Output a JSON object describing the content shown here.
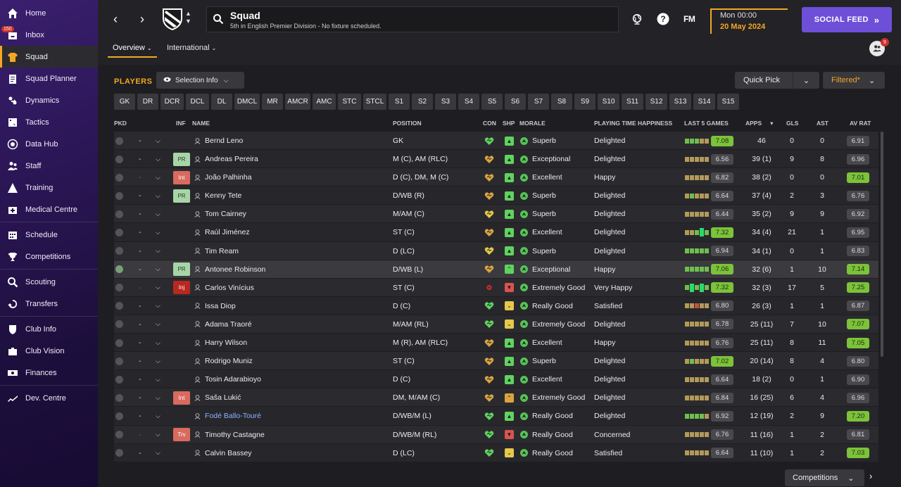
{
  "sidebar": {
    "items": [
      {
        "label": "Home",
        "icon": "home-icon"
      },
      {
        "label": "Inbox",
        "icon": "inbox-icon",
        "badge": "150"
      },
      {
        "label": "Squad",
        "icon": "shirt-icon",
        "active": true
      },
      {
        "label": "Squad Planner",
        "icon": "clipboard-icon"
      },
      {
        "label": "Dynamics",
        "icon": "dynamics-icon"
      },
      {
        "label": "Tactics",
        "icon": "tactics-icon"
      },
      {
        "label": "Data Hub",
        "icon": "data-hub-icon"
      },
      {
        "label": "Staff",
        "icon": "staff-icon"
      },
      {
        "label": "Training",
        "icon": "training-icon"
      },
      {
        "label": "Medical Centre",
        "icon": "medical-icon"
      },
      {
        "label": "Schedule",
        "icon": "calendar-icon"
      },
      {
        "label": "Competitions",
        "icon": "trophy-icon"
      },
      {
        "label": "Scouting",
        "icon": "scouting-icon"
      },
      {
        "label": "Transfers",
        "icon": "transfers-icon"
      },
      {
        "label": "Club Info",
        "icon": "shield-icon"
      },
      {
        "label": "Club Vision",
        "icon": "briefcase-icon"
      },
      {
        "label": "Finances",
        "icon": "finances-icon"
      },
      {
        "label": "Dev. Centre",
        "icon": "dev-centre-icon"
      }
    ]
  },
  "header": {
    "title": "Squad",
    "subtitle": "5th in English Premier Division - No fixture scheduled.",
    "fm_logo": "FM",
    "time": "Mon 00:00",
    "date": "20 May 2024",
    "social_feed": "SOCIAL FEED",
    "tabs": [
      {
        "label": "Overview"
      },
      {
        "label": "International"
      }
    ],
    "notifications": "9"
  },
  "toolbar": {
    "players_label": "PLAYERS",
    "selection_info": "Selection Info",
    "quick_pick": "Quick Pick",
    "filtered": "Filtered*"
  },
  "position_filters": [
    "GK",
    "DR",
    "DCR",
    "DCL",
    "DL",
    "DMCL",
    "MR",
    "AMCR",
    "AMC",
    "STC",
    "STCL",
    "S1",
    "S2",
    "S3",
    "S4",
    "S5",
    "S6",
    "S7",
    "S8",
    "S9",
    "S10",
    "S11",
    "S12",
    "S13",
    "S14",
    "S15"
  ],
  "columns": {
    "pkd": "PKD",
    "inf": "INF",
    "name": "NAME",
    "position": "POSITION",
    "con": "CON",
    "shp": "SHP",
    "morale": "MORALE",
    "pth": "PLAYING TIME HAPPINESS",
    "last5": "LAST 5 GAMES",
    "apps": "APPS",
    "gls": "GLS",
    "ast": "AST",
    "avrat": "AV RAT"
  },
  "players": [
    {
      "picked": false,
      "dash": "-",
      "dash_red": false,
      "inf": "",
      "name": "Bernd Leno",
      "position": "GK",
      "con": "green",
      "shp": "good",
      "morale": "Superb",
      "pth": "Delighted",
      "form": "gggtt",
      "form_rating": "7.08",
      "form_good": true,
      "apps": "46",
      "gls": "0",
      "ast": "0",
      "avr": "6.91",
      "avr_good": false
    },
    {
      "picked": false,
      "dash": "-",
      "dash_red": false,
      "inf": "PR",
      "name": "Andreas Pereira",
      "position": "M (C), AM (RLC)",
      "con": "tan",
      "shp": "good",
      "morale": "Exceptional",
      "pth": "Delighted",
      "form": "ttttt",
      "form_rating": "6.56",
      "form_good": false,
      "apps": "39 (1)",
      "gls": "9",
      "ast": "8",
      "avr": "6.96",
      "avr_good": false
    },
    {
      "picked": false,
      "dash": "-",
      "dash_red": true,
      "inf": "Int",
      "name": "João Palhinha",
      "position": "D (C), DM, M (C)",
      "con": "tan",
      "shp": "good",
      "morale": "Excellent",
      "pth": "Happy",
      "form": "ttttt",
      "form_rating": "6.82",
      "form_good": false,
      "apps": "38 (2)",
      "gls": "0",
      "ast": "0",
      "avr": "7.01",
      "avr_good": true
    },
    {
      "picked": false,
      "dash": "-",
      "dash_red": false,
      "inf": "PR",
      "name": "Kenny Tete",
      "position": "D/WB (R)",
      "con": "tan",
      "shp": "good",
      "morale": "Superb",
      "pth": "Delighted",
      "form": "tgttt",
      "form_rating": "6.64",
      "form_good": false,
      "apps": "37 (4)",
      "gls": "2",
      "ast": "3",
      "avr": "6.76",
      "avr_good": false
    },
    {
      "picked": false,
      "dash": "-",
      "dash_red": false,
      "inf": "",
      "name": "Tom Cairney",
      "position": "M/AM (C)",
      "con": "yellow",
      "shp": "good",
      "morale": "Superb",
      "pth": "Delighted",
      "form": "ttttt",
      "form_rating": "6.44",
      "form_good": false,
      "apps": "35 (2)",
      "gls": "9",
      "ast": "9",
      "avr": "6.92",
      "avr_good": false
    },
    {
      "picked": false,
      "dash": "-",
      "dash_red": false,
      "inf": "",
      "name": "Raúl Jiménez",
      "position": "ST (C)",
      "con": "tan",
      "shp": "good",
      "morale": "Excellent",
      "pth": "Delighted",
      "form": "ttgGg",
      "form_rating": "7.32",
      "form_good": true,
      "apps": "34 (4)",
      "gls": "21",
      "ast": "1",
      "avr": "6.95",
      "avr_good": false
    },
    {
      "picked": false,
      "dash": "-",
      "dash_red": false,
      "inf": "",
      "name": "Tim Ream",
      "position": "D (LC)",
      "con": "yellow",
      "shp": "good",
      "morale": "Superb",
      "pth": "Delighted",
      "form": "ggggg",
      "form_rating": "6.94",
      "form_good": false,
      "apps": "34 (1)",
      "gls": "0",
      "ast": "1",
      "avr": "6.83",
      "avr_good": false
    },
    {
      "picked": true,
      "dash": "-",
      "dash_red": false,
      "inf": "PR",
      "name": "Antonee Robinson",
      "position": "D/WB (L)",
      "con": "tan",
      "shp": "up",
      "morale": "Exceptional",
      "pth": "Happy",
      "form": "ggggg",
      "form_rating": "7.06",
      "form_good": true,
      "apps": "32 (6)",
      "gls": "1",
      "ast": "10",
      "avr": "7.14",
      "avr_good": true
    },
    {
      "picked": false,
      "dash": "-",
      "dash_red": true,
      "inf": "Inj",
      "name": "Carlos Vinícius",
      "position": "ST (C)",
      "con": "injury",
      "shp": "bad",
      "morale": "Extremely Good",
      "pth": "Very Happy",
      "form": "gGgGg",
      "form_rating": "7.32",
      "form_good": true,
      "apps": "32 (3)",
      "gls": "17",
      "ast": "5",
      "avr": "7.25",
      "avr_good": true
    },
    {
      "picked": false,
      "dash": "-",
      "dash_red": false,
      "inf": "",
      "name": "Issa Diop",
      "position": "D (C)",
      "con": "green",
      "shp": "down",
      "morale": "Really Good",
      "pth": "Satisfied",
      "form": "ttrtt",
      "form_rating": "6.80",
      "form_good": false,
      "apps": "26 (3)",
      "gls": "1",
      "ast": "1",
      "avr": "6.87",
      "avr_good": false
    },
    {
      "picked": false,
      "dash": "-",
      "dash_red": false,
      "inf": "",
      "name": "Adama Traoré",
      "position": "M/AM (RL)",
      "con": "green",
      "shp": "down",
      "morale": "Extremely Good",
      "pth": "Delighted",
      "form": "ttttt",
      "form_rating": "6.78",
      "form_good": false,
      "apps": "25 (11)",
      "gls": "7",
      "ast": "10",
      "avr": "7.07",
      "avr_good": true
    },
    {
      "picked": false,
      "dash": "-",
      "dash_red": false,
      "inf": "",
      "name": "Harry Wilson",
      "position": "M (R), AM (RLC)",
      "con": "tan",
      "shp": "good",
      "morale": "Excellent",
      "pth": "Happy",
      "form": "ttttt",
      "form_rating": "6.76",
      "form_good": false,
      "apps": "25 (11)",
      "gls": "8",
      "ast": "11",
      "avr": "7.05",
      "avr_good": true
    },
    {
      "picked": false,
      "dash": "-",
      "dash_red": false,
      "inf": "",
      "name": "Rodrigo Muniz",
      "position": "ST (C)",
      "con": "tan",
      "shp": "good",
      "morale": "Superb",
      "pth": "Delighted",
      "form": "tgttt",
      "form_rating": "7.02",
      "form_good": true,
      "apps": "20 (14)",
      "gls": "8",
      "ast": "4",
      "avr": "6.80",
      "avr_good": false
    },
    {
      "picked": false,
      "dash": "-",
      "dash_red": false,
      "inf": "",
      "name": "Tosin Adarabioyo",
      "position": "D (C)",
      "con": "tan",
      "shp": "good",
      "morale": "Excellent",
      "pth": "Delighted",
      "form": "ttttt",
      "form_rating": "6.64",
      "form_good": false,
      "apps": "18 (2)",
      "gls": "0",
      "ast": "1",
      "avr": "6.90",
      "avr_good": false
    },
    {
      "picked": false,
      "dash": "-",
      "dash_red": false,
      "inf": "Int",
      "name": "Saša Lukić",
      "position": "DM, M/AM (C)",
      "con": "tan",
      "shp": "up-tan",
      "morale": "Extremely Good",
      "pth": "Delighted",
      "form": "ttttt",
      "form_rating": "6.84",
      "form_good": false,
      "apps": "16 (25)",
      "gls": "6",
      "ast": "4",
      "avr": "6.96",
      "avr_good": false
    },
    {
      "picked": false,
      "dash": "-",
      "dash_red": false,
      "inf": "",
      "name": "Fodé Ballo-Touré",
      "name_blue": true,
      "position": "D/WB/M (L)",
      "con": "green",
      "shp": "good",
      "morale": "Really Good",
      "pth": "Delighted",
      "form": "ggggt",
      "form_rating": "6.92",
      "form_good": false,
      "apps": "12 (19)",
      "gls": "2",
      "ast": "9",
      "avr": "7.20",
      "avr_good": true
    },
    {
      "picked": false,
      "dash": "-",
      "dash_red": true,
      "inf": "Trv",
      "name": "Timothy Castagne",
      "position": "D/WB/M (RL)",
      "con": "green",
      "shp": "bad",
      "morale": "Really Good",
      "pth": "Concerned",
      "form": "ttttt",
      "form_rating": "6.76",
      "form_good": false,
      "apps": "11 (16)",
      "gls": "1",
      "ast": "2",
      "avr": "6.81",
      "avr_good": false
    },
    {
      "picked": false,
      "dash": "-",
      "dash_red": false,
      "inf": "",
      "name": "Calvin Bassey",
      "position": "D (LC)",
      "con": "green",
      "shp": "down",
      "morale": "Really Good",
      "pth": "Satisfied",
      "form": "ttttt",
      "form_rating": "6.64",
      "form_good": false,
      "apps": "11 (10)",
      "gls": "1",
      "ast": "2",
      "avr": "7.03",
      "avr_good": true
    }
  ],
  "footer": {
    "competitions": "Competitions"
  },
  "colors": {
    "accent": "#f5a623",
    "social": "#6e4fd8",
    "good_rating": "#7cc23a"
  }
}
